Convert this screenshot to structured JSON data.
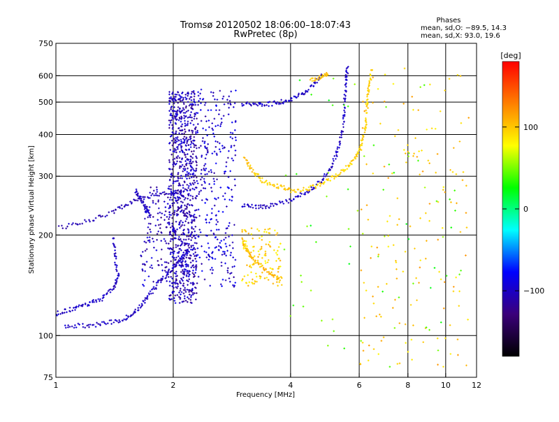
{
  "chart_data": {
    "type": "scatter",
    "title": "Tromsø 20120502 18:06:00–18:07:43",
    "subtitle": "RwPretec (8p)",
    "xlabel": "Frequency [MHz]",
    "ylabel": "Stationary phase Virtual Height [km]",
    "x_scale": "log",
    "y_scale": "log",
    "xlim": [
      1,
      12
    ],
    "ylim": [
      75,
      750
    ],
    "x_ticks": [
      "1",
      "2",
      "4",
      "6",
      "8",
      "10",
      "12"
    ],
    "y_ticks": [
      "75",
      "100",
      "200",
      "300",
      "400",
      "500",
      "600",
      "750"
    ],
    "grid": true,
    "info": {
      "heading": "Phases",
      "line1": "mean, sd,O: −89.5, 14.3",
      "line2": "mean, sd,X:  93.0, 19.6"
    },
    "colorbar": {
      "label": "[deg]",
      "ticks": [
        "100",
        "0",
        "−100"
      ],
      "range": [
        -180,
        180
      ],
      "colors": [
        "#000000",
        "#3b007a",
        "#0000ff",
        "#00ffff",
        "#00ff00",
        "#ffff00",
        "#ff8000",
        "#ff0000"
      ]
    },
    "traces": [
      {
        "name": "o-lower",
        "phase": -100,
        "points": [
          [
            1.05,
            107
          ],
          [
            1.2,
            107
          ],
          [
            1.35,
            109
          ],
          [
            1.5,
            112
          ],
          [
            1.6,
            118
          ],
          [
            1.7,
            128
          ],
          [
            1.8,
            140
          ],
          [
            1.9,
            150
          ],
          [
            2.0,
            160
          ],
          [
            2.1,
            170
          ],
          [
            2.2,
            180
          ]
        ]
      },
      {
        "name": "o-upper",
        "phase": -100,
        "points": [
          [
            1.0,
            116
          ],
          [
            1.1,
            120
          ],
          [
            1.2,
            124
          ],
          [
            1.3,
            128
          ],
          [
            1.4,
            138
          ],
          [
            1.45,
            150
          ],
          [
            1.42,
            170
          ],
          [
            1.4,
            200
          ]
        ]
      },
      {
        "name": "o-E-ledge",
        "phase": -105,
        "points": [
          [
            1.02,
            210
          ],
          [
            1.2,
            220
          ],
          [
            1.4,
            235
          ],
          [
            1.55,
            250
          ],
          [
            1.7,
            260
          ],
          [
            1.9,
            265
          ],
          [
            2.1,
            270
          ]
        ]
      },
      {
        "name": "o-F-cusp",
        "phase": -100,
        "points": [
          [
            1.6,
            270
          ],
          [
            1.65,
            255
          ],
          [
            1.7,
            240
          ],
          [
            1.75,
            230
          ]
        ]
      },
      {
        "name": "o-F2",
        "phase": -100,
        "points": [
          [
            3.0,
            245
          ],
          [
            3.3,
            243
          ],
          [
            3.6,
            245
          ],
          [
            4.0,
            255
          ],
          [
            4.4,
            268
          ],
          [
            4.8,
            290
          ],
          [
            5.1,
            320
          ],
          [
            5.3,
            360
          ],
          [
            5.45,
            420
          ],
          [
            5.5,
            500
          ],
          [
            5.55,
            580
          ],
          [
            5.6,
            640
          ]
        ]
      },
      {
        "name": "o-F2-far",
        "phase": -100,
        "points": [
          [
            3.0,
            495
          ],
          [
            3.3,
            490
          ],
          [
            3.6,
            495
          ],
          [
            3.9,
            505
          ],
          [
            4.2,
            520
          ],
          [
            4.5,
            555
          ],
          [
            4.8,
            600
          ]
        ]
      },
      {
        "name": "x-F2",
        "phase": 95,
        "points": [
          [
            4.0,
            270
          ],
          [
            4.4,
            275
          ],
          [
            4.8,
            285
          ],
          [
            5.2,
            300
          ],
          [
            5.6,
            320
          ],
          [
            5.9,
            345
          ],
          [
            6.1,
            380
          ],
          [
            6.25,
            430
          ],
          [
            6.3,
            500
          ],
          [
            6.35,
            560
          ],
          [
            6.5,
            630
          ]
        ]
      },
      {
        "name": "x-F1",
        "phase": 100,
        "points": [
          [
            3.05,
            340
          ],
          [
            3.2,
            310
          ],
          [
            3.4,
            290
          ],
          [
            3.7,
            280
          ],
          [
            4.0,
            275
          ]
        ]
      },
      {
        "name": "x-F2-far",
        "phase": 100,
        "points": [
          [
            4.5,
            580
          ],
          [
            4.8,
            595
          ],
          [
            5.0,
            610
          ]
        ]
      },
      {
        "name": "x-E",
        "phase": 105,
        "points": [
          [
            3.0,
            195
          ],
          [
            3.1,
            180
          ],
          [
            3.2,
            170
          ],
          [
            3.4,
            160
          ],
          [
            3.6,
            152
          ],
          [
            3.8,
            147
          ]
        ]
      }
    ],
    "clouds": [
      {
        "name": "spread-2.0",
        "phase": -105,
        "xmin": 1.95,
        "xmax": 2.3,
        "ymin": 125,
        "ymax": 540,
        "n": 900
      },
      {
        "name": "spread-2.6",
        "phase": -95,
        "xmin": 2.3,
        "xmax": 2.9,
        "ymin": 140,
        "ymax": 550,
        "n": 300
      },
      {
        "name": "spread-1.7",
        "phase": -105,
        "xmin": 1.65,
        "xmax": 2.0,
        "ymin": 140,
        "ymax": 280,
        "n": 120
      },
      {
        "name": "scatter-3.6",
        "phase": 95,
        "xmin": 3.0,
        "xmax": 3.8,
        "ymin": 140,
        "ymax": 210,
        "n": 120
      },
      {
        "name": "noise-high",
        "phase": 100,
        "xmin": 6.0,
        "xmax": 11.5,
        "ymin": 78,
        "ymax": 640,
        "n": 160
      },
      {
        "name": "noise-mid",
        "phase": 40,
        "xmin": 3.8,
        "xmax": 11.0,
        "ymin": 78,
        "ymax": 600,
        "n": 70
      }
    ]
  }
}
